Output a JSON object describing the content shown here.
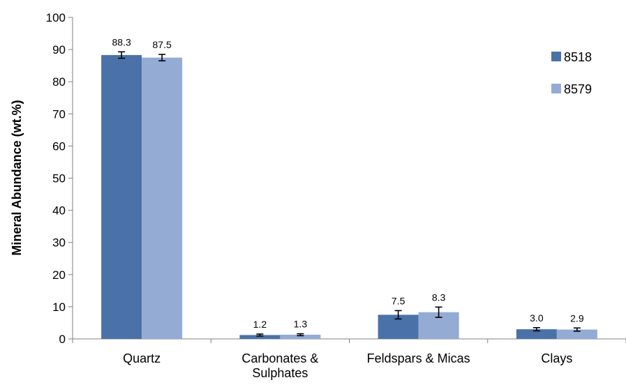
{
  "chart_data": {
    "type": "bar",
    "title": "",
    "xlabel": "",
    "ylabel": "Mineral Abundance (wt.%)",
    "ylim": [
      0,
      100
    ],
    "yticks": [
      0,
      10,
      20,
      30,
      40,
      50,
      60,
      70,
      80,
      90,
      100
    ],
    "categories": [
      [
        "Quartz"
      ],
      [
        "Carbonates &",
        "Sulphates"
      ],
      [
        "Feldspars & Micas"
      ],
      [
        "Clays"
      ]
    ],
    "series": [
      {
        "name": "8518",
        "color": "#4a72a8",
        "values": [
          88.3,
          1.2,
          7.5,
          3.0
        ],
        "labels": [
          "88.3",
          "1.2",
          "7.5",
          "3.0"
        ],
        "errors": [
          1.0,
          0.3,
          1.3,
          0.5
        ]
      },
      {
        "name": "8579",
        "color": "#94abd4",
        "values": [
          87.5,
          1.3,
          8.3,
          2.9
        ],
        "labels": [
          "87.5",
          "1.3",
          "8.3",
          "2.9"
        ],
        "errors": [
          1.0,
          0.3,
          1.6,
          0.5
        ]
      }
    ],
    "legend": "right",
    "grid": false
  }
}
